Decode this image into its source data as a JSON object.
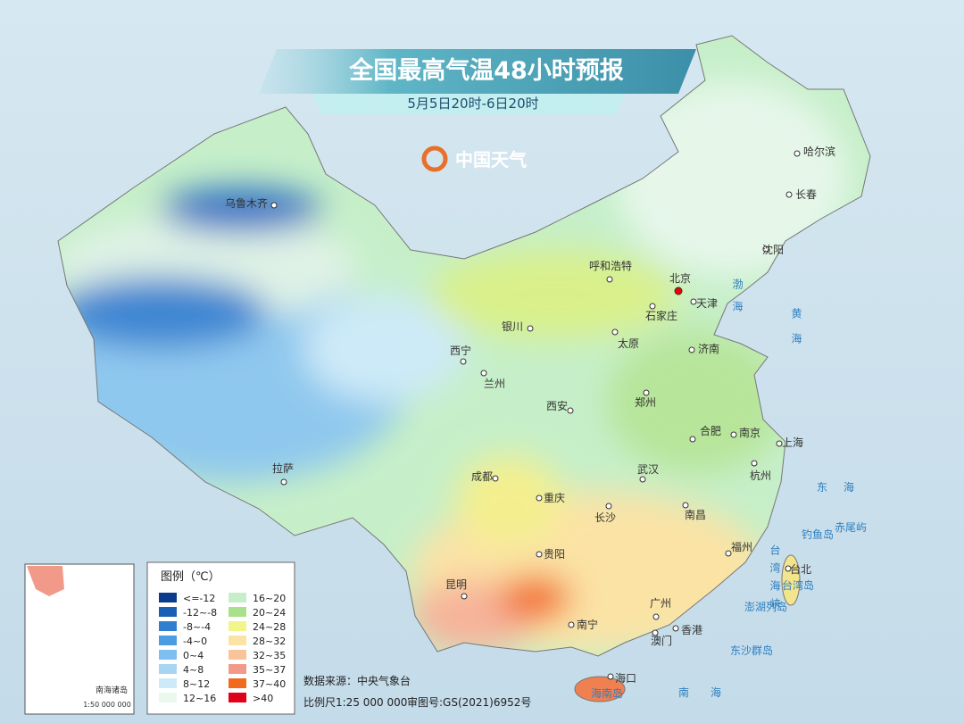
{
  "header": {
    "title": "全国最高气温48小时预报",
    "subtitle": "5月5日20时-6日20时",
    "logo": "中国天气"
  },
  "cities": [
    "乌鲁木齐",
    "哈尔滨",
    "长春",
    "沈阳",
    "呼和浩特",
    "北京",
    "天津",
    "石家庄",
    "银川",
    "太原",
    "济南",
    "西宁",
    "兰州",
    "郑州",
    "西安",
    "合肥",
    "南京",
    "上海",
    "拉萨",
    "成都",
    "武汉",
    "杭州",
    "重庆",
    "长沙",
    "南昌",
    "福州",
    "贵阳",
    "台北",
    "昆明",
    "广州",
    "南宁",
    "香港",
    "澳门",
    "海口"
  ],
  "places": [
    "渤海",
    "黄海",
    "东海",
    "台湾海峡",
    "南海",
    "钓鱼岛",
    "赤尾屿",
    "台湾岛",
    "澎湖列岛",
    "东沙群岛",
    "海南岛"
  ],
  "legend": {
    "title": "图例（℃）",
    "items": [
      {
        "label": "<=-12",
        "color": "#0b3c8c"
      },
      {
        "label": "-12~-8",
        "color": "#1b5fb5"
      },
      {
        "label": "-8~-4",
        "color": "#2f7fd0"
      },
      {
        "label": "-4~0",
        "color": "#4a9de0"
      },
      {
        "label": "0~4",
        "color": "#7cbff0"
      },
      {
        "label": "4~8",
        "color": "#a6d6f2"
      },
      {
        "label": "8~12",
        "color": "#cdeaf8"
      },
      {
        "label": "12~16",
        "color": "#eaf8ee"
      },
      {
        "label": "16~20",
        "color": "#c6efc9"
      },
      {
        "label": "20~24",
        "color": "#a8e08b"
      },
      {
        "label": "24~28",
        "color": "#f2f58a"
      },
      {
        "label": "28~32",
        "color": "#fbe3a5"
      },
      {
        "label": "32~35",
        "color": "#f9c49a"
      },
      {
        "label": "35~37",
        "color": "#f29a8a"
      },
      {
        "label": "37~40",
        "color": "#f26a1e"
      },
      {
        "label": ">40",
        "color": "#e0001a"
      }
    ]
  },
  "footer": {
    "source": "数据来源：中央气象台",
    "scale": "比例尺1:25 000 000",
    "review": "审图号:GS(2021)6952号"
  },
  "inset": {
    "title": "南海诸岛",
    "scale": "1:50 000 000"
  }
}
